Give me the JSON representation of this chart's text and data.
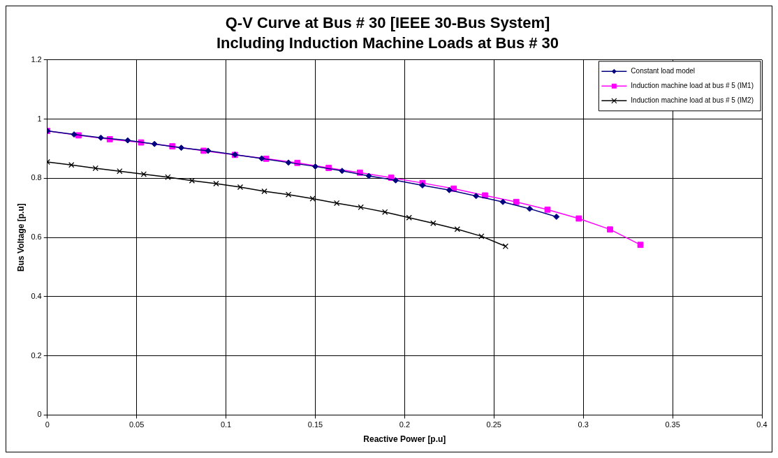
{
  "chart_data": {
    "type": "line",
    "title": "Q-V Curve at Bus # 30 [IEEE 30-Bus System]",
    "subtitle": "Including Induction Machine Loads at Bus # 30",
    "xlabel": "Reactive Power [p.u]",
    "ylabel": "Bus Voltage [p.u]",
    "xlim": [
      0,
      0.4
    ],
    "xticks": [
      0,
      0.05,
      0.1,
      0.15,
      0.2,
      0.25,
      0.3,
      0.35,
      0.4
    ],
    "ylim": [
      0,
      1.2
    ],
    "yticks": [
      0,
      0.2,
      0.4,
      0.6,
      0.8,
      1,
      1.2
    ],
    "grid": true,
    "legend": "top right",
    "line_style": "solid",
    "series": [
      {
        "name": "Constant load model",
        "color": "#000080",
        "marker": "diamond",
        "x": [
          0,
          0.015,
          0.03,
          0.045,
          0.06,
          0.075,
          0.09,
          0.105,
          0.12,
          0.135,
          0.15,
          0.165,
          0.18,
          0.195,
          0.21,
          0.225,
          0.24,
          0.255,
          0.27,
          0.285
        ],
        "values": [
          0.96,
          0.948,
          0.937,
          0.928,
          0.916,
          0.903,
          0.893,
          0.88,
          0.867,
          0.853,
          0.84,
          0.825,
          0.808,
          0.793,
          0.776,
          0.76,
          0.74,
          0.72,
          0.697,
          0.67
        ]
      },
      {
        "name": "Induction machine load at bus # 5 (IM1)",
        "color": "#ff00ff",
        "marker": "square",
        "x": [
          0,
          0.0175,
          0.035,
          0.0525,
          0.07,
          0.0875,
          0.105,
          0.1225,
          0.14,
          0.1575,
          0.175,
          0.1925,
          0.21,
          0.2275,
          0.245,
          0.2625,
          0.28,
          0.2975,
          0.315,
          0.332
        ],
        "values": [
          0.96,
          0.945,
          0.932,
          0.921,
          0.908,
          0.893,
          0.879,
          0.866,
          0.852,
          0.835,
          0.819,
          0.802,
          0.784,
          0.765,
          0.742,
          0.72,
          0.694,
          0.664,
          0.627,
          0.575
        ]
      },
      {
        "name": "Induction machine load at bus # 5 (IM2)",
        "color": "#000000",
        "marker": "cross",
        "x": [
          0,
          0.0135,
          0.027,
          0.0405,
          0.054,
          0.0675,
          0.081,
          0.0945,
          0.108,
          0.1215,
          0.135,
          0.1485,
          0.162,
          0.1755,
          0.189,
          0.2025,
          0.216,
          0.2295,
          0.243,
          0.2565
        ],
        "values": [
          0.855,
          0.845,
          0.834,
          0.824,
          0.814,
          0.804,
          0.792,
          0.782,
          0.77,
          0.756,
          0.745,
          0.731,
          0.716,
          0.702,
          0.686,
          0.667,
          0.648,
          0.628,
          0.604,
          0.57
        ]
      }
    ]
  }
}
